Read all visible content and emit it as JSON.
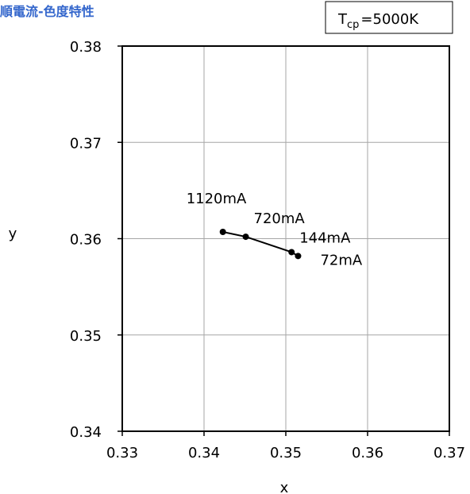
{
  "title": "順電流-色度特性",
  "condition": {
    "symbol": "T",
    "subscript": "cp",
    "value": "=5000K"
  },
  "accent_color": "#3366cc",
  "chart_data": {
    "type": "line",
    "title": "順電流-色度特性",
    "xlabel": "x",
    "ylabel": "y",
    "xlim": [
      0.33,
      0.37
    ],
    "ylim": [
      0.34,
      0.38
    ],
    "xticks": [
      "0.33",
      "0.34",
      "0.35",
      "0.36",
      "0.37"
    ],
    "yticks": [
      "0.34",
      "0.35",
      "0.36",
      "0.37",
      "0.38"
    ],
    "grid": true,
    "series": [
      {
        "points": [
          {
            "x": 0.3423,
            "y": 0.3607,
            "label": "1120mA"
          },
          {
            "x": 0.3451,
            "y": 0.3602,
            "label": "720mA"
          },
          {
            "x": 0.3507,
            "y": 0.3586,
            "label": "144mA"
          },
          {
            "x": 0.3515,
            "y": 0.3582,
            "label": "72mA"
          }
        ]
      }
    ]
  }
}
